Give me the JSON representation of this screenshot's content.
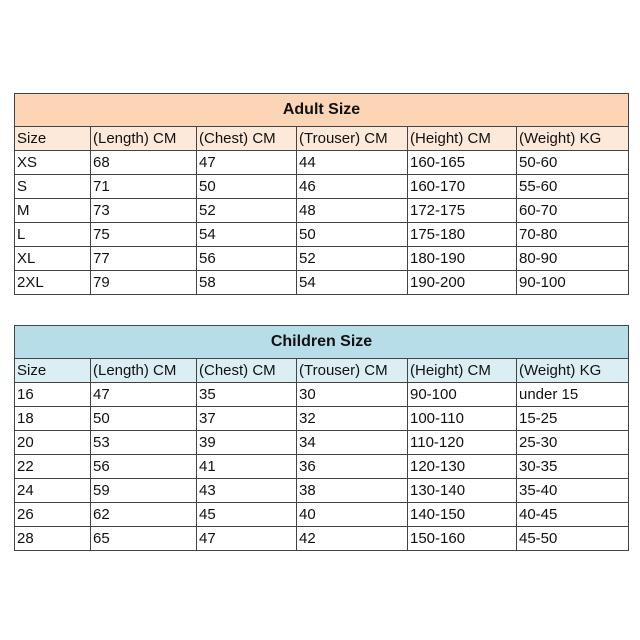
{
  "colors": {
    "adult_title": "#fbd5b5",
    "adult_header": "#fde9d9",
    "children_title": "#b7dde8",
    "children_header": "#dbeef3"
  },
  "adult": {
    "title": "Adult Size",
    "headers": [
      "Size",
      "(Length) CM",
      "(Chest) CM",
      "(Trouser) CM",
      "(Height) CM",
      "(Weight) KG"
    ],
    "rows": [
      [
        "XS",
        "68",
        "47",
        "44",
        "160-165",
        "50-60"
      ],
      [
        "S",
        "71",
        "50",
        "46",
        "160-170",
        "55-60"
      ],
      [
        "M",
        "73",
        "52",
        "48",
        "172-175",
        "60-70"
      ],
      [
        "L",
        "75",
        "54",
        "50",
        "175-180",
        "70-80"
      ],
      [
        "XL",
        "77",
        "56",
        "52",
        "180-190",
        "80-90"
      ],
      [
        "2XL",
        "79",
        "58",
        "54",
        "190-200",
        "90-100"
      ]
    ]
  },
  "children": {
    "title": "Children Size",
    "headers": [
      "Size",
      "(Length) CM",
      "(Chest) CM",
      "(Trouser) CM",
      "(Height) CM",
      "(Weight) KG"
    ],
    "rows": [
      [
        "16",
        "47",
        "35",
        "30",
        "90-100",
        "under 15"
      ],
      [
        "18",
        "50",
        "37",
        "32",
        "100-110",
        "15-25"
      ],
      [
        "20",
        "53",
        "39",
        "34",
        "110-120",
        "25-30"
      ],
      [
        "22",
        "56",
        "41",
        "36",
        "120-130",
        "30-35"
      ],
      [
        "24",
        "59",
        "43",
        "38",
        "130-140",
        "35-40"
      ],
      [
        "26",
        "62",
        "45",
        "40",
        "140-150",
        "40-45"
      ],
      [
        "28",
        "65",
        "47",
        "42",
        "150-160",
        "45-50"
      ]
    ]
  }
}
